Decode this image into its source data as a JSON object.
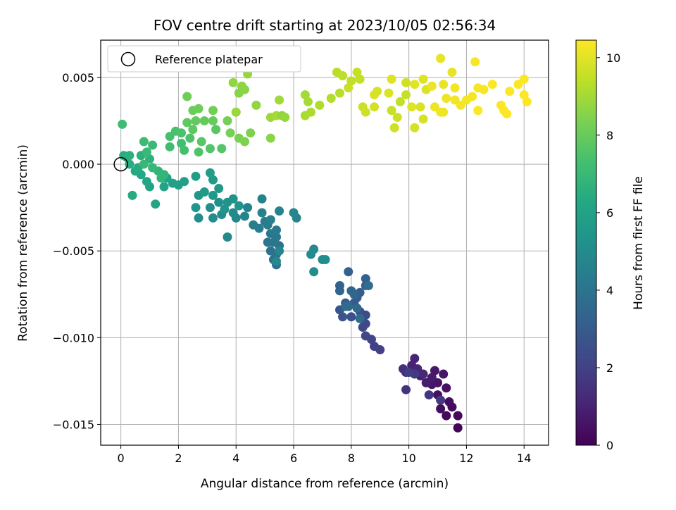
{
  "chart_data": {
    "type": "scatter",
    "title": "FOV centre drift starting at 2023/10/05 02:56:34",
    "xlabel": "Angular distance from reference (arcmin)",
    "ylabel": "Rotation from reference (arcmin)",
    "xlim": [
      -0.7,
      14.85
    ],
    "ylim": [
      -0.0162,
      0.00715
    ],
    "xticks": [
      "0",
      "2",
      "4",
      "6",
      "8",
      "10",
      "12",
      "14"
    ],
    "yticks": [
      "0.005",
      "0.000",
      "−0.005",
      "−0.010",
      "−0.015"
    ],
    "grid": true,
    "legend": {
      "placement": "top-left",
      "entries": [
        "Reference platepar"
      ]
    },
    "reference_point": {
      "x": 0.0,
      "y": 0.0
    },
    "colorbar": {
      "label": "Hours from first FF file",
      "colormap": "viridis",
      "range": [
        0,
        10.45
      ],
      "ticks": [
        "0",
        "2",
        "4",
        "6",
        "8",
        "10"
      ]
    },
    "points": [
      {
        "x": 11.7,
        "y": -0.0152,
        "t": 0.1
      },
      {
        "x": 11.7,
        "y": -0.0145,
        "t": 0.2
      },
      {
        "x": 11.3,
        "y": -0.0145,
        "t": 0.25
      },
      {
        "x": 11.5,
        "y": -0.014,
        "t": 0.3
      },
      {
        "x": 11.1,
        "y": -0.0141,
        "t": 0.35
      },
      {
        "x": 11.4,
        "y": -0.0137,
        "t": 0.4
      },
      {
        "x": 11.0,
        "y": -0.0133,
        "t": 0.45
      },
      {
        "x": 11.3,
        "y": -0.0129,
        "t": 0.5
      },
      {
        "x": 11.0,
        "y": -0.0126,
        "t": 0.55
      },
      {
        "x": 10.8,
        "y": -0.0127,
        "t": 0.6
      },
      {
        "x": 11.2,
        "y": -0.0121,
        "t": 0.65
      },
      {
        "x": 10.9,
        "y": -0.0119,
        "t": 0.7
      },
      {
        "x": 10.8,
        "y": -0.0123,
        "t": 0.75
      },
      {
        "x": 10.6,
        "y": -0.0126,
        "t": 0.8
      },
      {
        "x": 10.4,
        "y": -0.0122,
        "t": 0.9
      },
      {
        "x": 10.1,
        "y": -0.0116,
        "t": 1.0
      },
      {
        "x": 10.2,
        "y": -0.0112,
        "t": 1.05
      },
      {
        "x": 10.3,
        "y": -0.0118,
        "t": 1.1
      },
      {
        "x": 10.5,
        "y": -0.0121,
        "t": 1.2
      },
      {
        "x": 9.9,
        "y": -0.012,
        "t": 1.3
      },
      {
        "x": 9.8,
        "y": -0.0118,
        "t": 1.4
      },
      {
        "x": 9.9,
        "y": -0.013,
        "t": 1.5
      },
      {
        "x": 10.7,
        "y": -0.0133,
        "t": 1.6
      },
      {
        "x": 11.1,
        "y": -0.0136,
        "t": 1.7
      },
      {
        "x": 10.2,
        "y": -0.0121,
        "t": 1.8
      },
      {
        "x": 10.0,
        "y": -0.012,
        "t": 1.9
      },
      {
        "x": 9.0,
        "y": -0.0107,
        "t": 2.0
      },
      {
        "x": 8.8,
        "y": -0.0105,
        "t": 2.05
      },
      {
        "x": 8.7,
        "y": -0.0101,
        "t": 2.1
      },
      {
        "x": 8.5,
        "y": -0.0099,
        "t": 2.15
      },
      {
        "x": 8.4,
        "y": -0.0094,
        "t": 2.2
      },
      {
        "x": 8.5,
        "y": -0.0092,
        "t": 2.3
      },
      {
        "x": 8.4,
        "y": -0.0089,
        "t": 2.35
      },
      {
        "x": 8.5,
        "y": -0.0087,
        "t": 2.4
      },
      {
        "x": 8.3,
        "y": -0.0085,
        "t": 2.5
      },
      {
        "x": 8.0,
        "y": -0.0088,
        "t": 2.6
      },
      {
        "x": 7.7,
        "y": -0.0088,
        "t": 2.7
      },
      {
        "x": 7.6,
        "y": -0.0084,
        "t": 2.8
      },
      {
        "x": 7.8,
        "y": -0.008,
        "t": 2.9
      },
      {
        "x": 8.1,
        "y": -0.008,
        "t": 3.0
      },
      {
        "x": 8.2,
        "y": -0.0077,
        "t": 3.05
      },
      {
        "x": 8.3,
        "y": -0.0074,
        "t": 3.1
      },
      {
        "x": 8.5,
        "y": -0.007,
        "t": 3.15
      },
      {
        "x": 8.5,
        "y": -0.0066,
        "t": 3.2
      },
      {
        "x": 7.9,
        "y": -0.0062,
        "t": 3.25
      },
      {
        "x": 7.6,
        "y": -0.007,
        "t": 3.3
      },
      {
        "x": 7.6,
        "y": -0.0073,
        "t": 3.35
      },
      {
        "x": 8.0,
        "y": -0.0073,
        "t": 3.4
      },
      {
        "x": 8.1,
        "y": -0.0075,
        "t": 3.45
      },
      {
        "x": 7.9,
        "y": -0.0082,
        "t": 3.5
      },
      {
        "x": 8.2,
        "y": -0.0083,
        "t": 3.55
      },
      {
        "x": 8.3,
        "y": -0.0089,
        "t": 3.6
      },
      {
        "x": 7.8,
        "y": -0.0082,
        "t": 3.65
      },
      {
        "x": 8.6,
        "y": -0.007,
        "t": 3.7
      },
      {
        "x": 5.4,
        "y": -0.0058,
        "t": 3.8
      },
      {
        "x": 5.3,
        "y": -0.0055,
        "t": 3.85
      },
      {
        "x": 5.4,
        "y": -0.0052,
        "t": 3.9
      },
      {
        "x": 5.2,
        "y": -0.005,
        "t": 3.95
      },
      {
        "x": 5.5,
        "y": -0.0047,
        "t": 4.0
      },
      {
        "x": 5.3,
        "y": -0.0045,
        "t": 4.05
      },
      {
        "x": 5.1,
        "y": -0.0045,
        "t": 4.1
      },
      {
        "x": 5.4,
        "y": -0.0042,
        "t": 4.15
      },
      {
        "x": 5.2,
        "y": -0.004,
        "t": 4.2
      },
      {
        "x": 5.4,
        "y": -0.0038,
        "t": 4.25
      },
      {
        "x": 5.1,
        "y": -0.0035,
        "t": 4.3
      },
      {
        "x": 5.0,
        "y": -0.0033,
        "t": 4.35
      },
      {
        "x": 4.8,
        "y": -0.0037,
        "t": 4.4
      },
      {
        "x": 4.6,
        "y": -0.0035,
        "t": 4.45
      },
      {
        "x": 5.2,
        "y": -0.0032,
        "t": 4.5
      },
      {
        "x": 4.9,
        "y": -0.0028,
        "t": 4.55
      },
      {
        "x": 4.9,
        "y": -0.002,
        "t": 4.6
      },
      {
        "x": 5.5,
        "y": -0.0027,
        "t": 4.65
      },
      {
        "x": 6.1,
        "y": -0.0031,
        "t": 4.7
      },
      {
        "x": 6.0,
        "y": -0.0028,
        "t": 4.75
      },
      {
        "x": 5.5,
        "y": -0.005,
        "t": 4.8
      },
      {
        "x": 5.4,
        "y": -0.0056,
        "t": 4.85
      },
      {
        "x": 6.7,
        "y": -0.0049,
        "t": 4.9
      },
      {
        "x": 6.6,
        "y": -0.0052,
        "t": 4.95
      },
      {
        "x": 7.0,
        "y": -0.0055,
        "t": 5.0
      },
      {
        "x": 7.1,
        "y": -0.0055,
        "t": 5.05
      },
      {
        "x": 6.7,
        "y": -0.0062,
        "t": 5.1
      },
      {
        "x": 4.4,
        "y": -0.0025,
        "t": 4.6
      },
      {
        "x": 4.3,
        "y": -0.003,
        "t": 4.7
      },
      {
        "x": 4.0,
        "y": -0.0031,
        "t": 4.8
      },
      {
        "x": 3.7,
        "y": -0.0042,
        "t": 4.85
      },
      {
        "x": 3.9,
        "y": -0.0028,
        "t": 4.9
      },
      {
        "x": 3.5,
        "y": -0.0029,
        "t": 5.0
      },
      {
        "x": 3.2,
        "y": -0.0031,
        "t": 5.05
      },
      {
        "x": 2.7,
        "y": -0.0031,
        "t": 5.1
      },
      {
        "x": 3.1,
        "y": -0.0025,
        "t": 5.15
      },
      {
        "x": 3.4,
        "y": -0.0022,
        "t": 5.2
      },
      {
        "x": 3.7,
        "y": -0.0022,
        "t": 5.25
      },
      {
        "x": 3.9,
        "y": -0.002,
        "t": 5.3
      },
      {
        "x": 4.1,
        "y": -0.0024,
        "t": 5.35
      },
      {
        "x": 3.6,
        "y": -0.0026,
        "t": 5.4
      },
      {
        "x": 2.6,
        "y": -0.0025,
        "t": 5.45
      },
      {
        "x": 2.7,
        "y": -0.0018,
        "t": 5.5
      },
      {
        "x": 3.2,
        "y": -0.0018,
        "t": 5.55
      },
      {
        "x": 3.4,
        "y": -0.0014,
        "t": 5.6
      },
      {
        "x": 3.2,
        "y": -0.0009,
        "t": 5.65
      },
      {
        "x": 2.9,
        "y": -0.0016,
        "t": 5.7
      },
      {
        "x": 3.1,
        "y": -0.0005,
        "t": 5.75
      },
      {
        "x": 2.6,
        "y": -0.0007,
        "t": 5.8
      },
      {
        "x": 2.2,
        "y": -0.001,
        "t": 5.85
      },
      {
        "x": 2.0,
        "y": -0.0012,
        "t": 5.9
      },
      {
        "x": 1.8,
        "y": -0.0011,
        "t": 5.95
      },
      {
        "x": 1.6,
        "y": -0.0008,
        "t": 6.0
      },
      {
        "x": 1.5,
        "y": -0.0013,
        "t": 6.05
      },
      {
        "x": 1.2,
        "y": -0.0023,
        "t": 6.1
      },
      {
        "x": 1.0,
        "y": -0.0013,
        "t": 6.15
      },
      {
        "x": 0.9,
        "y": -0.001,
        "t": 6.2
      },
      {
        "x": 0.7,
        "y": -0.0006,
        "t": 6.25
      },
      {
        "x": 0.5,
        "y": -0.0004,
        "t": 6.3
      },
      {
        "x": 0.4,
        "y": -0.0018,
        "t": 6.35
      },
      {
        "x": 0.6,
        "y": -0.0002,
        "t": 6.4
      },
      {
        "x": 0.3,
        "y": 0.0,
        "t": 6.45
      },
      {
        "x": 0.2,
        "y": 0.0004,
        "t": 6.5
      },
      {
        "x": 0.1,
        "y": 0.0005,
        "t": 6.55
      },
      {
        "x": 0.3,
        "y": 0.0005,
        "t": 6.6
      },
      {
        "x": 0.7,
        "y": 0.0005,
        "t": 6.65
      },
      {
        "x": 1.0,
        "y": 0.0003,
        "t": 6.7
      },
      {
        "x": 1.3,
        "y": -0.0004,
        "t": 6.75
      },
      {
        "x": 1.4,
        "y": -0.0008,
        "t": 6.8
      },
      {
        "x": 1.5,
        "y": -0.0006,
        "t": 6.85
      },
      {
        "x": 1.1,
        "y": -0.0002,
        "t": 6.9
      },
      {
        "x": 0.8,
        "y": 0.0,
        "t": 6.95
      },
      {
        "x": 0.9,
        "y": 0.0007,
        "t": 7.0
      },
      {
        "x": 1.1,
        "y": 0.0011,
        "t": 7.05
      },
      {
        "x": 0.8,
        "y": 0.0013,
        "t": 7.1
      },
      {
        "x": 0.05,
        "y": 0.0023,
        "t": 7.15
      },
      {
        "x": 1.7,
        "y": 0.001,
        "t": 7.2
      },
      {
        "x": 2.1,
        "y": 0.0012,
        "t": 7.25
      },
      {
        "x": 2.2,
        "y": 0.0008,
        "t": 7.3
      },
      {
        "x": 1.7,
        "y": 0.0016,
        "t": 7.35
      },
      {
        "x": 1.9,
        "y": 0.0019,
        "t": 7.4
      },
      {
        "x": 2.1,
        "y": 0.0018,
        "t": 7.45
      },
      {
        "x": 2.4,
        "y": 0.0015,
        "t": 7.5
      },
      {
        "x": 2.7,
        "y": 0.0007,
        "t": 7.55
      },
      {
        "x": 3.1,
        "y": 0.0009,
        "t": 7.6
      },
      {
        "x": 3.5,
        "y": 0.0009,
        "t": 7.65
      },
      {
        "x": 2.8,
        "y": 0.0013,
        "t": 7.7
      },
      {
        "x": 3.3,
        "y": 0.002,
        "t": 7.75
      },
      {
        "x": 2.5,
        "y": 0.002,
        "t": 7.8
      },
      {
        "x": 2.3,
        "y": 0.0024,
        "t": 7.85
      },
      {
        "x": 2.6,
        "y": 0.0025,
        "t": 7.9
      },
      {
        "x": 2.9,
        "y": 0.0025,
        "t": 7.95
      },
      {
        "x": 3.2,
        "y": 0.0025,
        "t": 8.0
      },
      {
        "x": 2.5,
        "y": 0.0031,
        "t": 8.05
      },
      {
        "x": 2.7,
        "y": 0.0032,
        "t": 8.1
      },
      {
        "x": 2.3,
        "y": 0.0039,
        "t": 8.15
      },
      {
        "x": 3.2,
        "y": 0.0031,
        "t": 8.2
      },
      {
        "x": 3.7,
        "y": 0.0025,
        "t": 8.25
      },
      {
        "x": 3.8,
        "y": 0.0018,
        "t": 8.3
      },
      {
        "x": 4.1,
        "y": 0.0015,
        "t": 8.35
      },
      {
        "x": 4.3,
        "y": 0.0013,
        "t": 8.4
      },
      {
        "x": 4.5,
        "y": 0.0018,
        "t": 8.45
      },
      {
        "x": 4.0,
        "y": 0.003,
        "t": 8.5
      },
      {
        "x": 4.1,
        "y": 0.0041,
        "t": 8.55
      },
      {
        "x": 4.3,
        "y": 0.0043,
        "t": 8.6
      },
      {
        "x": 4.2,
        "y": 0.0045,
        "t": 8.65
      },
      {
        "x": 3.9,
        "y": 0.0047,
        "t": 8.7
      },
      {
        "x": 4.7,
        "y": 0.0034,
        "t": 8.75
      },
      {
        "x": 4.4,
        "y": 0.0052,
        "t": 8.8
      },
      {
        "x": 4.0,
        "y": 0.003,
        "t": 8.85
      },
      {
        "x": 5.2,
        "y": 0.0027,
        "t": 8.9
      },
      {
        "x": 5.5,
        "y": 0.0037,
        "t": 8.95
      },
      {
        "x": 5.4,
        "y": 0.0028,
        "t": 9.0
      },
      {
        "x": 5.2,
        "y": 0.0015,
        "t": 8.6
      },
      {
        "x": 5.6,
        "y": 0.0028,
        "t": 8.7
      },
      {
        "x": 5.7,
        "y": 0.0027,
        "t": 8.8
      },
      {
        "x": 6.4,
        "y": 0.004,
        "t": 9.0
      },
      {
        "x": 6.5,
        "y": 0.0036,
        "t": 9.05
      },
      {
        "x": 6.4,
        "y": 0.0028,
        "t": 9.1
      },
      {
        "x": 6.6,
        "y": 0.003,
        "t": 9.15
      },
      {
        "x": 6.9,
        "y": 0.0034,
        "t": 9.2
      },
      {
        "x": 7.3,
        "y": 0.0038,
        "t": 9.25
      },
      {
        "x": 7.6,
        "y": 0.0041,
        "t": 9.3
      },
      {
        "x": 7.5,
        "y": 0.0053,
        "t": 9.35
      },
      {
        "x": 7.7,
        "y": 0.0051,
        "t": 9.4
      },
      {
        "x": 8.0,
        "y": 0.0048,
        "t": 9.45
      },
      {
        "x": 8.3,
        "y": 0.0049,
        "t": 9.5
      },
      {
        "x": 8.2,
        "y": 0.0053,
        "t": 9.55
      },
      {
        "x": 7.9,
        "y": 0.0044,
        "t": 9.6
      },
      {
        "x": 8.4,
        "y": 0.0033,
        "t": 9.65
      },
      {
        "x": 8.5,
        "y": 0.003,
        "t": 9.7
      },
      {
        "x": 8.8,
        "y": 0.0033,
        "t": 9.75
      },
      {
        "x": 8.9,
        "y": 0.0042,
        "t": 9.8
      },
      {
        "x": 8.8,
        "y": 0.004,
        "t": 9.85
      },
      {
        "x": 9.3,
        "y": 0.0041,
        "t": 9.9
      },
      {
        "x": 9.4,
        "y": 0.0049,
        "t": 9.95
      },
      {
        "x": 9.7,
        "y": 0.0036,
        "t": 9.5
      },
      {
        "x": 9.9,
        "y": 0.004,
        "t": 9.55
      },
      {
        "x": 9.4,
        "y": 0.0031,
        "t": 9.6
      },
      {
        "x": 9.6,
        "y": 0.0027,
        "t": 9.65
      },
      {
        "x": 9.5,
        "y": 0.0021,
        "t": 9.7
      },
      {
        "x": 10.2,
        "y": 0.0021,
        "t": 9.75
      },
      {
        "x": 10.5,
        "y": 0.0026,
        "t": 9.8
      },
      {
        "x": 10.4,
        "y": 0.0033,
        "t": 9.85
      },
      {
        "x": 10.6,
        "y": 0.0043,
        "t": 9.9
      },
      {
        "x": 10.5,
        "y": 0.0049,
        "t": 9.95
      },
      {
        "x": 10.2,
        "y": 0.0046,
        "t": 10.0
      },
      {
        "x": 10.1,
        "y": 0.0033,
        "t": 10.0
      },
      {
        "x": 9.9,
        "y": 0.0047,
        "t": 9.7
      },
      {
        "x": 11.1,
        "y": 0.0061,
        "t": 10.05
      },
      {
        "x": 11.5,
        "y": 0.0053,
        "t": 10.1
      },
      {
        "x": 11.2,
        "y": 0.0046,
        "t": 10.1
      },
      {
        "x": 10.8,
        "y": 0.0045,
        "t": 10.15
      },
      {
        "x": 10.9,
        "y": 0.0033,
        "t": 10.2
      },
      {
        "x": 11.3,
        "y": 0.0038,
        "t": 10.2
      },
      {
        "x": 11.1,
        "y": 0.003,
        "t": 10.25
      },
      {
        "x": 11.6,
        "y": 0.0044,
        "t": 10.25
      },
      {
        "x": 11.8,
        "y": 0.0034,
        "t": 10.3
      },
      {
        "x": 12.0,
        "y": 0.0037,
        "t": 10.3
      },
      {
        "x": 12.2,
        "y": 0.0039,
        "t": 10.3
      },
      {
        "x": 12.3,
        "y": 0.0059,
        "t": 10.35
      },
      {
        "x": 12.4,
        "y": 0.0044,
        "t": 10.35
      },
      {
        "x": 12.6,
        "y": 0.0043,
        "t": 10.35
      },
      {
        "x": 12.4,
        "y": 0.0031,
        "t": 10.4
      },
      {
        "x": 12.9,
        "y": 0.0046,
        "t": 10.4
      },
      {
        "x": 13.2,
        "y": 0.0034,
        "t": 10.4
      },
      {
        "x": 13.4,
        "y": 0.0029,
        "t": 10.42
      },
      {
        "x": 13.5,
        "y": 0.0042,
        "t": 10.42
      },
      {
        "x": 13.8,
        "y": 0.0046,
        "t": 10.43
      },
      {
        "x": 14.0,
        "y": 0.0049,
        "t": 10.44
      },
      {
        "x": 14.0,
        "y": 0.004,
        "t": 10.44
      },
      {
        "x": 14.1,
        "y": 0.0036,
        "t": 10.45
      },
      {
        "x": 13.3,
        "y": 0.0031,
        "t": 10.4
      },
      {
        "x": 11.2,
        "y": 0.003,
        "t": 10.2
      },
      {
        "x": 11.6,
        "y": 0.0037,
        "t": 10.25
      }
    ]
  }
}
